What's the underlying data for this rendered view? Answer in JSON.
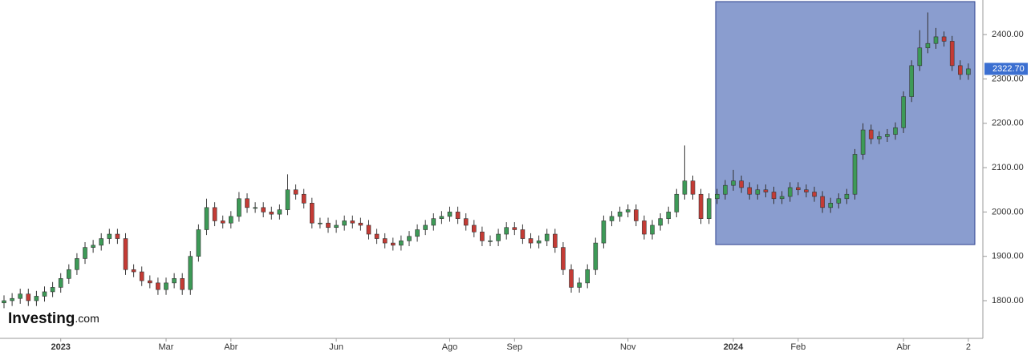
{
  "chart_data": {
    "type": "candlestick",
    "logo": "Investing",
    "logo_suffix": ".com",
    "categories": [
      null,
      null,
      null,
      null,
      null,
      null,
      null,
      "2023",
      null,
      null,
      null,
      null,
      null,
      null,
      null,
      null,
      null,
      null,
      null,
      null,
      "Mar",
      null,
      null,
      null,
      null,
      null,
      null,
      null,
      "Abr",
      null,
      null,
      null,
      null,
      null,
      null,
      null,
      null,
      null,
      null,
      null,
      null,
      "Jun",
      null,
      null,
      null,
      null,
      null,
      null,
      null,
      null,
      null,
      null,
      null,
      null,
      null,
      "Ago",
      null,
      null,
      null,
      null,
      null,
      null,
      null,
      "Sep",
      null,
      null,
      null,
      null,
      null,
      null,
      null,
      null,
      null,
      null,
      null,
      null,
      null,
      "Nov",
      null,
      null,
      null,
      null,
      null,
      null,
      null,
      null,
      null,
      null,
      null,
      null,
      "2024",
      null,
      null,
      null,
      null,
      null,
      null,
      null,
      "Feb",
      null,
      null,
      null,
      null,
      null,
      null,
      null,
      null,
      null,
      null,
      null,
      null,
      "Abr",
      null,
      null,
      null,
      null,
      null,
      null,
      null,
      "2"
    ],
    "open": [
      1795,
      1800,
      1805,
      1815,
      1800,
      1810,
      1820,
      1830,
      1850,
      1870,
      1895,
      1920,
      1925,
      1940,
      1950,
      1940,
      1870,
      1865,
      1845,
      1840,
      1825,
      1840,
      1850,
      1825,
      1900,
      1960,
      2010,
      1980,
      1975,
      1990,
      2030,
      2010,
      2010,
      2000,
      1995,
      2005,
      2050,
      2040,
      2020,
      1975,
      1975,
      1965,
      1970,
      1980,
      1975,
      1970,
      1950,
      1940,
      1930,
      1925,
      1935,
      1945,
      1960,
      1970,
      1985,
      1990,
      2000,
      1985,
      1970,
      1955,
      1935,
      1935,
      1950,
      1965,
      1960,
      1940,
      1930,
      1935,
      1950,
      1920,
      1870,
      1830,
      1840,
      1870,
      1930,
      1980,
      1990,
      2000,
      2005,
      1980,
      1950,
      1970,
      1985,
      2000,
      2040,
      2070,
      2040,
      1985,
      2030,
      2040,
      2060,
      2070,
      2055,
      2040,
      2050,
      2045,
      2030,
      2035,
      2055,
      2050,
      2045,
      2035,
      2010,
      2020,
      2030,
      2040,
      2130,
      2185,
      2165,
      2170,
      2175,
      2190,
      2260,
      2330,
      2370,
      2380,
      2395,
      2385,
      2330,
      2310
    ],
    "high": [
      1812,
      1817,
      1827,
      1827,
      1822,
      1832,
      1842,
      1862,
      1882,
      1907,
      1932,
      1937,
      1952,
      1962,
      1962,
      1952,
      1882,
      1877,
      1857,
      1852,
      1852,
      1862,
      1862,
      1912,
      1972,
      2030,
      2022,
      1992,
      2002,
      2045,
      2042,
      2022,
      2022,
      2012,
      2017,
      2085,
      2062,
      2052,
      2032,
      1987,
      1987,
      1982,
      1992,
      1992,
      1987,
      1982,
      1962,
      1952,
      1942,
      1947,
      1957,
      1972,
      1982,
      1997,
      2002,
      2012,
      2012,
      1997,
      1982,
      1967,
      1947,
      1962,
      1977,
      1977,
      1972,
      1952,
      1947,
      1962,
      1962,
      1932,
      1882,
      1852,
      1882,
      1942,
      1992,
      2002,
      2012,
      2017,
      2017,
      1992,
      1982,
      1997,
      2012,
      2052,
      2150,
      2082,
      2052,
      2042,
      2052,
      2072,
      2095,
      2082,
      2067,
      2062,
      2062,
      2057,
      2047,
      2067,
      2067,
      2062,
      2057,
      2047,
      2032,
      2042,
      2052,
      2142,
      2200,
      2197,
      2182,
      2187,
      2202,
      2272,
      2342,
      2410,
      2450,
      2415,
      2407,
      2397,
      2342,
      2335
    ],
    "low": [
      1783,
      1788,
      1793,
      1788,
      1788,
      1798,
      1808,
      1818,
      1838,
      1858,
      1883,
      1908,
      1913,
      1928,
      1928,
      1858,
      1853,
      1833,
      1828,
      1813,
      1813,
      1828,
      1813,
      1813,
      1888,
      1948,
      1968,
      1963,
      1963,
      1978,
      1998,
      1998,
      1988,
      1983,
      1983,
      1993,
      2028,
      2008,
      1963,
      1963,
      1953,
      1953,
      1958,
      1963,
      1958,
      1938,
      1928,
      1918,
      1913,
      1913,
      1923,
      1933,
      1948,
      1958,
      1973,
      1978,
      1973,
      1958,
      1943,
      1923,
      1923,
      1923,
      1938,
      1948,
      1928,
      1918,
      1918,
      1923,
      1908,
      1858,
      1818,
      1818,
      1828,
      1858,
      1918,
      1968,
      1978,
      1988,
      1968,
      1938,
      1938,
      1958,
      1973,
      1988,
      2028,
      2028,
      1973,
      1973,
      2018,
      2028,
      2048,
      2043,
      2028,
      2028,
      2033,
      2018,
      2018,
      2023,
      2038,
      2033,
      2023,
      1998,
      1998,
      2008,
      2018,
      2028,
      2118,
      2153,
      2153,
      2158,
      2163,
      2178,
      2248,
      2318,
      2358,
      2368,
      2373,
      2318,
      2298,
      2298
    ],
    "close": [
      1800,
      1805,
      1815,
      1800,
      1810,
      1820,
      1830,
      1850,
      1870,
      1895,
      1920,
      1925,
      1940,
      1950,
      1940,
      1870,
      1865,
      1845,
      1840,
      1825,
      1840,
      1850,
      1825,
      1900,
      1960,
      2010,
      1980,
      1975,
      1990,
      2030,
      2010,
      2010,
      2000,
      1995,
      2005,
      2050,
      2040,
      2020,
      1975,
      1975,
      1965,
      1970,
      1980,
      1975,
      1970,
      1950,
      1940,
      1930,
      1925,
      1935,
      1945,
      1960,
      1970,
      1985,
      1990,
      2000,
      1985,
      1970,
      1955,
      1935,
      1935,
      1950,
      1965,
      1960,
      1940,
      1930,
      1935,
      1950,
      1920,
      1870,
      1830,
      1840,
      1870,
      1930,
      1980,
      1990,
      2000,
      2005,
      1980,
      1950,
      1970,
      1985,
      2000,
      2040,
      2070,
      2040,
      1985,
      2030,
      2040,
      2060,
      2070,
      2055,
      2040,
      2050,
      2045,
      2030,
      2035,
      2055,
      2050,
      2045,
      2035,
      2010,
      2020,
      2030,
      2040,
      2130,
      2185,
      2165,
      2170,
      2175,
      2190,
      2260,
      2330,
      2370,
      2380,
      2395,
      2385,
      2330,
      2310,
      2322.7
    ],
    "up_color": "#3d9a57",
    "down_color": "#c43b35",
    "last_price": {
      "value": 2322.7,
      "label": "2322.70"
    },
    "ylim": [
      1715,
      2478
    ],
    "yticks": [
      {
        "value": 1800,
        "label": "1800.00"
      },
      {
        "value": 1900,
        "label": "1900.00"
      },
      {
        "value": 2000,
        "label": "2000.00"
      },
      {
        "value": 2100,
        "label": "2100.00"
      },
      {
        "value": 2200,
        "label": "2200.00"
      },
      {
        "value": 2300,
        "label": "2300.00"
      },
      {
        "value": 2400,
        "label": "2400.00"
      }
    ]
  }
}
